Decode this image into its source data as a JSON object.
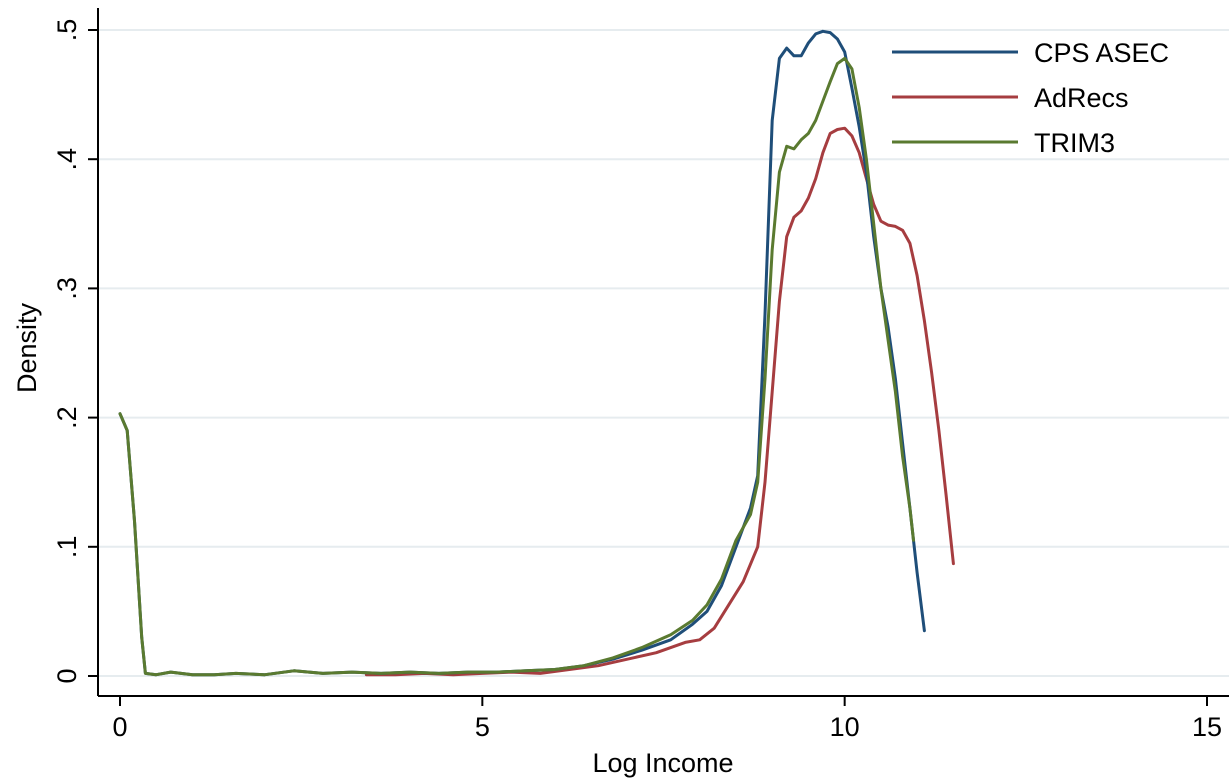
{
  "chart_data": {
    "type": "line",
    "xlabel": "Log Income",
    "ylabel": "Density",
    "xlim": [
      0,
      15
    ],
    "ylim": [
      0,
      0.5
    ],
    "xticks": [
      0,
      5,
      10,
      15
    ],
    "xtick_labels": [
      "0",
      "5",
      "10",
      "15"
    ],
    "yticks": [
      0,
      0.1,
      0.2,
      0.3,
      0.4,
      0.5
    ],
    "ytick_labels": [
      "0",
      ".1",
      ".2",
      ".3",
      ".4",
      ".5"
    ],
    "grid": "horizontal",
    "legend_position": "top-right",
    "series": [
      {
        "name": "CPS ASEC",
        "color": "#1f4e79",
        "x": [
          0,
          0.1,
          0.2,
          0.3,
          0.35,
          0.5,
          0.7,
          1.0,
          1.3,
          1.6,
          2.0,
          2.4,
          2.8,
          3.2,
          3.6,
          4.0,
          4.4,
          4.8,
          5.2,
          5.6,
          6.0,
          6.4,
          6.8,
          7.2,
          7.6,
          7.9,
          8.1,
          8.3,
          8.5,
          8.7,
          8.8,
          8.9,
          9.0,
          9.1,
          9.2,
          9.3,
          9.4,
          9.5,
          9.6,
          9.7,
          9.8,
          9.9,
          10.0,
          10.1,
          10.2,
          10.3,
          10.4,
          10.5,
          10.6,
          10.7,
          10.8,
          10.9,
          11.0,
          11.1
        ],
        "y": [
          0.203,
          0.19,
          0.12,
          0.03,
          0.002,
          0.001,
          0.003,
          0.001,
          0.001,
          0.002,
          0.001,
          0.004,
          0.002,
          0.003,
          0.002,
          0.003,
          0.002,
          0.003,
          0.003,
          0.004,
          0.005,
          0.008,
          0.013,
          0.02,
          0.028,
          0.04,
          0.05,
          0.07,
          0.1,
          0.13,
          0.155,
          0.28,
          0.43,
          0.478,
          0.486,
          0.48,
          0.48,
          0.49,
          0.497,
          0.499,
          0.498,
          0.493,
          0.483,
          0.455,
          0.425,
          0.39,
          0.34,
          0.3,
          0.27,
          0.23,
          0.18,
          0.13,
          0.08,
          0.035
        ]
      },
      {
        "name": "AdRecs",
        "color": "#a63d40",
        "x": [
          3.4,
          3.8,
          4.2,
          4.6,
          5.0,
          5.4,
          5.8,
          6.2,
          6.6,
          7.0,
          7.4,
          7.8,
          8.0,
          8.2,
          8.4,
          8.6,
          8.8,
          8.9,
          9.0,
          9.1,
          9.2,
          9.3,
          9.4,
          9.5,
          9.6,
          9.7,
          9.8,
          9.9,
          10.0,
          10.1,
          10.2,
          10.3,
          10.4,
          10.5,
          10.6,
          10.7,
          10.8,
          10.9,
          11.0,
          11.1,
          11.2,
          11.3,
          11.4,
          11.5
        ],
        "y": [
          0.001,
          0.001,
          0.002,
          0.001,
          0.002,
          0.003,
          0.002,
          0.005,
          0.008,
          0.013,
          0.018,
          0.026,
          0.028,
          0.037,
          0.055,
          0.073,
          0.1,
          0.15,
          0.22,
          0.29,
          0.34,
          0.355,
          0.36,
          0.37,
          0.385,
          0.405,
          0.42,
          0.423,
          0.424,
          0.418,
          0.405,
          0.385,
          0.365,
          0.352,
          0.349,
          0.348,
          0.345,
          0.335,
          0.31,
          0.275,
          0.235,
          0.19,
          0.14,
          0.087
        ]
      },
      {
        "name": "TRIM3",
        "color": "#5a7a30",
        "x": [
          0,
          0.1,
          0.2,
          0.3,
          0.35,
          0.5,
          0.7,
          1.0,
          1.3,
          1.6,
          2.0,
          2.4,
          2.8,
          3.2,
          3.6,
          4.0,
          4.4,
          4.8,
          5.2,
          5.6,
          6.0,
          6.4,
          6.8,
          7.2,
          7.6,
          7.9,
          8.1,
          8.3,
          8.5,
          8.7,
          8.8,
          8.9,
          9.0,
          9.1,
          9.2,
          9.3,
          9.4,
          9.5,
          9.6,
          9.7,
          9.8,
          9.9,
          10.0,
          10.1,
          10.2,
          10.3,
          10.4,
          10.5,
          10.6,
          10.7,
          10.8,
          10.9,
          10.95
        ],
        "y": [
          0.203,
          0.19,
          0.12,
          0.03,
          0.002,
          0.001,
          0.003,
          0.001,
          0.001,
          0.002,
          0.001,
          0.004,
          0.002,
          0.003,
          0.002,
          0.003,
          0.002,
          0.003,
          0.003,
          0.004,
          0.005,
          0.008,
          0.014,
          0.022,
          0.032,
          0.043,
          0.055,
          0.075,
          0.105,
          0.125,
          0.15,
          0.23,
          0.33,
          0.39,
          0.41,
          0.408,
          0.415,
          0.42,
          0.43,
          0.445,
          0.46,
          0.474,
          0.478,
          0.47,
          0.44,
          0.4,
          0.35,
          0.3,
          0.26,
          0.22,
          0.17,
          0.13,
          0.105
        ]
      }
    ]
  }
}
